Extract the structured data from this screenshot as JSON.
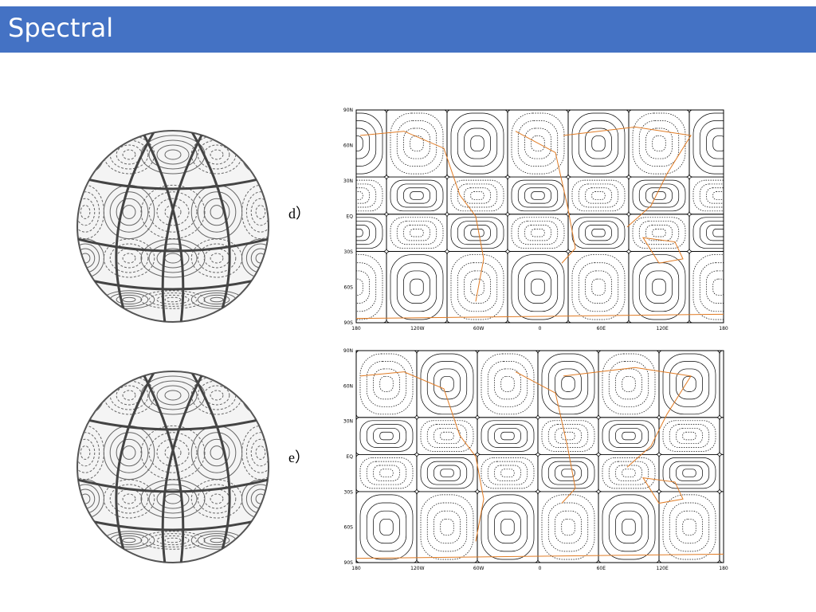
{
  "header": {
    "title": "Spectral"
  },
  "panels": [
    {
      "label": "d）"
    },
    {
      "label": "e）"
    }
  ],
  "map_axes": {
    "lat_labels": [
      "90N",
      "60N",
      "30N",
      "EQ",
      "30S",
      "60S",
      "90S"
    ],
    "lon_labels": [
      "180",
      "120W",
      "60W",
      "0",
      "60E",
      "120E",
      "180"
    ]
  }
}
